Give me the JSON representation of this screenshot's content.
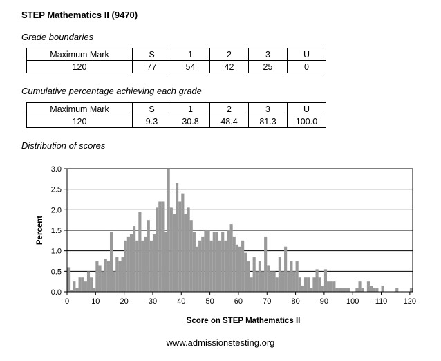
{
  "page": {
    "title": "STEP Mathematics II (9470)",
    "footer": "www.admissionstesting.org"
  },
  "grade_boundaries": {
    "caption": "Grade boundaries",
    "header": [
      "Maximum Mark",
      "S",
      "1",
      "2",
      "3",
      "U"
    ],
    "row": [
      "120",
      "77",
      "54",
      "42",
      "25",
      "0"
    ]
  },
  "cumulative": {
    "caption": "Cumulative percentage achieving each grade",
    "header": [
      "Maximum Mark",
      "S",
      "1",
      "2",
      "3",
      "U"
    ],
    "row": [
      "120",
      "9.3",
      "30.8",
      "48.4",
      "81.3",
      "100.0"
    ]
  },
  "distribution": {
    "caption": "Distribution of scores"
  },
  "chart_data": {
    "type": "bar",
    "title": "Distribution of scores",
    "xlabel": "Score on STEP Mathematics II",
    "ylabel": "Percent",
    "xlim": [
      0,
      121
    ],
    "ylim": [
      0,
      3.0
    ],
    "x_ticks": [
      "0",
      "10",
      "20",
      "30",
      "40",
      "50",
      "60",
      "70",
      "80",
      "90",
      "100",
      "110",
      "120"
    ],
    "y_ticks": [
      "0.0",
      "0.5",
      "1.0",
      "1.5",
      "2.0",
      "2.5",
      "3.0"
    ],
    "grid": "horizontal",
    "bar_color": "#999999",
    "categories": [
      0,
      1,
      2,
      3,
      4,
      5,
      6,
      7,
      8,
      9,
      10,
      11,
      12,
      13,
      14,
      15,
      16,
      17,
      18,
      19,
      20,
      21,
      22,
      23,
      24,
      25,
      26,
      27,
      28,
      29,
      30,
      31,
      32,
      33,
      34,
      35,
      36,
      37,
      38,
      39,
      40,
      41,
      42,
      43,
      44,
      45,
      46,
      47,
      48,
      49,
      50,
      51,
      52,
      53,
      54,
      55,
      56,
      57,
      58,
      59,
      60,
      61,
      62,
      63,
      64,
      65,
      66,
      67,
      68,
      69,
      70,
      71,
      72,
      73,
      74,
      75,
      76,
      77,
      78,
      79,
      80,
      81,
      82,
      83,
      84,
      85,
      86,
      87,
      88,
      89,
      90,
      91,
      92,
      93,
      94,
      95,
      96,
      97,
      98,
      99,
      100,
      101,
      102,
      103,
      104,
      105,
      106,
      107,
      108,
      109,
      110,
      111,
      112,
      113,
      114,
      115,
      116,
      117,
      118,
      119,
      120
    ],
    "values": [
      0.6,
      0.05,
      0.25,
      0.1,
      0.35,
      0.35,
      0.25,
      0.5,
      0.35,
      0.1,
      0.75,
      0.65,
      0.5,
      0.8,
      0.75,
      1.45,
      0.5,
      0.85,
      0.75,
      0.85,
      1.25,
      1.35,
      1.4,
      1.6,
      1.25,
      1.95,
      1.25,
      1.35,
      1.75,
      1.25,
      1.4,
      2.05,
      2.2,
      2.2,
      1.45,
      3.0,
      2.05,
      1.9,
      2.65,
      2.2,
      2.4,
      1.9,
      2.05,
      1.75,
      1.45,
      1.1,
      1.25,
      1.35,
      1.5,
      1.5,
      1.25,
      1.45,
      1.45,
      1.25,
      1.45,
      1.25,
      1.5,
      1.65,
      1.35,
      1.15,
      1.1,
      1.25,
      0.95,
      0.75,
      0.35,
      0.85,
      0.5,
      0.75,
      0.5,
      1.35,
      0.65,
      0.5,
      0.5,
      0.35,
      0.85,
      0.5,
      1.1,
      0.5,
      0.75,
      0.5,
      0.75,
      0.35,
      0.15,
      0.35,
      0.35,
      0.1,
      0.35,
      0.55,
      0.35,
      0.15,
      0.55,
      0.25,
      0.25,
      0.25,
      0.1,
      0.1,
      0.1,
      0.1,
      0.1,
      0.0,
      0.0,
      0.1,
      0.25,
      0.1,
      0.0,
      0.25,
      0.15,
      0.1,
      0.1,
      0.0,
      0.15,
      0.0,
      0.0,
      0.0,
      0.0,
      0.1,
      0.0,
      0.0,
      0.0,
      0.0,
      0.1
    ]
  }
}
